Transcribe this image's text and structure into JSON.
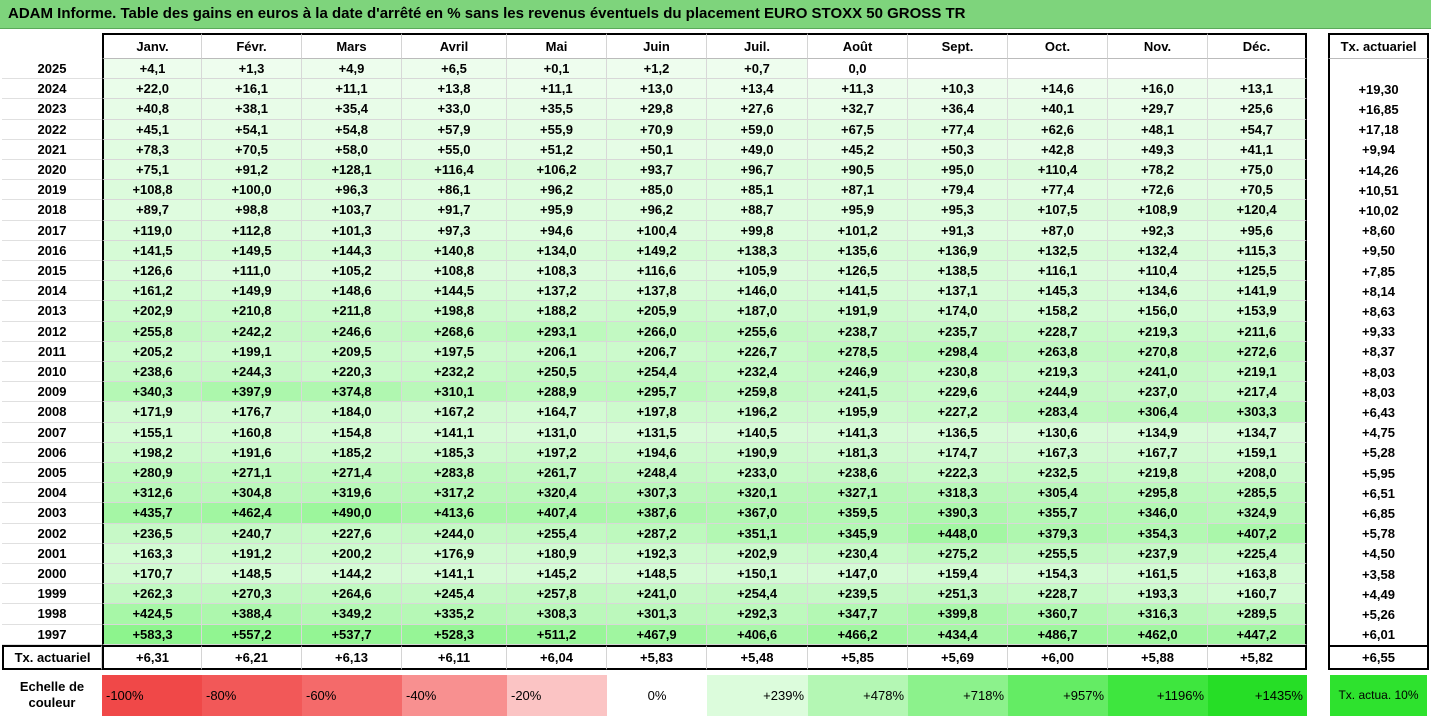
{
  "title": "ADAM Informe. Table des gains en euros à la date d'arrêté en % sans les revenus éventuels du placement EURO STOXX 50 GROSS TR",
  "chart_data": {
    "type": "table",
    "columns": [
      "Janv.",
      "Févr.",
      "Mars",
      "Avril",
      "Mai",
      "Juin",
      "Juil.",
      "Août",
      "Sept.",
      "Oct.",
      "Nov.",
      "Déc."
    ],
    "tx_header": "Tx. actuariel",
    "rows": [
      {
        "year": "2025",
        "values": [
          "+4,1",
          "+1,3",
          "+4,9",
          "+6,5",
          "+0,1",
          "+1,2",
          "+0,7",
          "0,0",
          "",
          "",
          "",
          ""
        ],
        "tx": ""
      },
      {
        "year": "2024",
        "values": [
          "+22,0",
          "+16,1",
          "+11,1",
          "+13,8",
          "+11,1",
          "+13,0",
          "+13,4",
          "+11,3",
          "+10,3",
          "+14,6",
          "+16,0",
          "+13,1"
        ],
        "tx": "+19,30"
      },
      {
        "year": "2023",
        "values": [
          "+40,8",
          "+38,1",
          "+35,4",
          "+33,0",
          "+35,5",
          "+29,8",
          "+27,6",
          "+32,7",
          "+36,4",
          "+40,1",
          "+29,7",
          "+25,6"
        ],
        "tx": "+16,85"
      },
      {
        "year": "2022",
        "values": [
          "+45,1",
          "+54,1",
          "+54,8",
          "+57,9",
          "+55,9",
          "+70,9",
          "+59,0",
          "+67,5",
          "+77,4",
          "+62,6",
          "+48,1",
          "+54,7"
        ],
        "tx": "+17,18"
      },
      {
        "year": "2021",
        "values": [
          "+78,3",
          "+70,5",
          "+58,0",
          "+55,0",
          "+51,2",
          "+50,1",
          "+49,0",
          "+45,2",
          "+50,3",
          "+42,8",
          "+49,3",
          "+41,1"
        ],
        "tx": "+9,94"
      },
      {
        "year": "2020",
        "values": [
          "+75,1",
          "+91,2",
          "+128,1",
          "+116,4",
          "+106,2",
          "+93,7",
          "+96,7",
          "+90,5",
          "+95,0",
          "+110,4",
          "+78,2",
          "+75,0"
        ],
        "tx": "+14,26"
      },
      {
        "year": "2019",
        "values": [
          "+108,8",
          "+100,0",
          "+96,3",
          "+86,1",
          "+96,2",
          "+85,0",
          "+85,1",
          "+87,1",
          "+79,4",
          "+77,4",
          "+72,6",
          "+70,5"
        ],
        "tx": "+10,51"
      },
      {
        "year": "2018",
        "values": [
          "+89,7",
          "+98,8",
          "+103,7",
          "+91,7",
          "+95,9",
          "+96,2",
          "+88,7",
          "+95,9",
          "+95,3",
          "+107,5",
          "+108,9",
          "+120,4"
        ],
        "tx": "+10,02"
      },
      {
        "year": "2017",
        "values": [
          "+119,0",
          "+112,8",
          "+101,3",
          "+97,3",
          "+94,6",
          "+100,4",
          "+99,8",
          "+101,2",
          "+91,3",
          "+87,0",
          "+92,3",
          "+95,6"
        ],
        "tx": "+8,60"
      },
      {
        "year": "2016",
        "values": [
          "+141,5",
          "+149,5",
          "+144,3",
          "+140,8",
          "+134,0",
          "+149,2",
          "+138,3",
          "+135,6",
          "+136,9",
          "+132,5",
          "+132,4",
          "+115,3"
        ],
        "tx": "+9,50"
      },
      {
        "year": "2015",
        "values": [
          "+126,6",
          "+111,0",
          "+105,2",
          "+108,8",
          "+108,3",
          "+116,6",
          "+105,9",
          "+126,5",
          "+138,5",
          "+116,1",
          "+110,4",
          "+125,5"
        ],
        "tx": "+7,85"
      },
      {
        "year": "2014",
        "values": [
          "+161,2",
          "+149,9",
          "+148,6",
          "+144,5",
          "+137,2",
          "+137,8",
          "+146,0",
          "+141,5",
          "+137,1",
          "+145,3",
          "+134,6",
          "+141,9"
        ],
        "tx": "+8,14"
      },
      {
        "year": "2013",
        "values": [
          "+202,9",
          "+210,8",
          "+211,8",
          "+198,8",
          "+188,2",
          "+205,9",
          "+187,0",
          "+191,9",
          "+174,0",
          "+158,2",
          "+156,0",
          "+153,9"
        ],
        "tx": "+8,63"
      },
      {
        "year": "2012",
        "values": [
          "+255,8",
          "+242,2",
          "+246,6",
          "+268,6",
          "+293,1",
          "+266,0",
          "+255,6",
          "+238,7",
          "+235,7",
          "+228,7",
          "+219,3",
          "+211,6"
        ],
        "tx": "+9,33"
      },
      {
        "year": "2011",
        "values": [
          "+205,2",
          "+199,1",
          "+209,5",
          "+197,5",
          "+206,1",
          "+206,7",
          "+226,7",
          "+278,5",
          "+298,4",
          "+263,8",
          "+270,8",
          "+272,6"
        ],
        "tx": "+8,37"
      },
      {
        "year": "2010",
        "values": [
          "+238,6",
          "+244,3",
          "+220,3",
          "+232,2",
          "+250,5",
          "+254,4",
          "+232,4",
          "+246,9",
          "+230,8",
          "+219,3",
          "+241,0",
          "+219,1"
        ],
        "tx": "+8,03"
      },
      {
        "year": "2009",
        "values": [
          "+340,3",
          "+397,9",
          "+374,8",
          "+310,1",
          "+288,9",
          "+295,7",
          "+259,8",
          "+241,5",
          "+229,6",
          "+244,9",
          "+237,0",
          "+217,4"
        ],
        "tx": "+8,03"
      },
      {
        "year": "2008",
        "values": [
          "+171,9",
          "+176,7",
          "+184,0",
          "+167,2",
          "+164,7",
          "+197,8",
          "+196,2",
          "+195,9",
          "+227,2",
          "+283,4",
          "+306,4",
          "+303,3"
        ],
        "tx": "+6,43"
      },
      {
        "year": "2007",
        "values": [
          "+155,1",
          "+160,8",
          "+154,8",
          "+141,1",
          "+131,0",
          "+131,5",
          "+140,5",
          "+141,3",
          "+136,5",
          "+130,6",
          "+134,9",
          "+134,7"
        ],
        "tx": "+4,75"
      },
      {
        "year": "2006",
        "values": [
          "+198,2",
          "+191,6",
          "+185,2",
          "+185,3",
          "+197,2",
          "+194,6",
          "+190,9",
          "+181,3",
          "+174,7",
          "+167,3",
          "+167,7",
          "+159,1"
        ],
        "tx": "+5,28"
      },
      {
        "year": "2005",
        "values": [
          "+280,9",
          "+271,1",
          "+271,4",
          "+283,8",
          "+261,7",
          "+248,4",
          "+233,0",
          "+238,6",
          "+222,3",
          "+232,5",
          "+219,8",
          "+208,0"
        ],
        "tx": "+5,95"
      },
      {
        "year": "2004",
        "values": [
          "+312,6",
          "+304,8",
          "+319,6",
          "+317,2",
          "+320,4",
          "+307,3",
          "+320,1",
          "+327,1",
          "+318,3",
          "+305,4",
          "+295,8",
          "+285,5"
        ],
        "tx": "+6,51"
      },
      {
        "year": "2003",
        "values": [
          "+435,7",
          "+462,4",
          "+490,0",
          "+413,6",
          "+407,4",
          "+387,6",
          "+367,0",
          "+359,5",
          "+390,3",
          "+355,7",
          "+346,0",
          "+324,9"
        ],
        "tx": "+6,85"
      },
      {
        "year": "2002",
        "values": [
          "+236,5",
          "+240,7",
          "+227,6",
          "+244,0",
          "+255,4",
          "+287,2",
          "+351,1",
          "+345,9",
          "+448,0",
          "+379,3",
          "+354,3",
          "+407,2"
        ],
        "tx": "+5,78"
      },
      {
        "year": "2001",
        "values": [
          "+163,3",
          "+191,2",
          "+200,2",
          "+176,9",
          "+180,9",
          "+192,3",
          "+202,9",
          "+230,4",
          "+275,2",
          "+255,5",
          "+237,9",
          "+225,4"
        ],
        "tx": "+4,50"
      },
      {
        "year": "2000",
        "values": [
          "+170,7",
          "+148,5",
          "+144,2",
          "+141,1",
          "+145,2",
          "+148,5",
          "+150,1",
          "+147,0",
          "+159,4",
          "+154,3",
          "+161,5",
          "+163,8"
        ],
        "tx": "+3,58"
      },
      {
        "year": "1999",
        "values": [
          "+262,3",
          "+270,3",
          "+264,6",
          "+245,4",
          "+257,8",
          "+241,0",
          "+254,4",
          "+239,5",
          "+251,3",
          "+228,7",
          "+193,3",
          "+160,7"
        ],
        "tx": "+4,49"
      },
      {
        "year": "1998",
        "values": [
          "+424,5",
          "+388,4",
          "+349,2",
          "+335,2",
          "+308,3",
          "+301,3",
          "+292,3",
          "+347,7",
          "+399,8",
          "+360,7",
          "+316,3",
          "+289,5"
        ],
        "tx": "+5,26"
      },
      {
        "year": "1997",
        "values": [
          "+583,3",
          "+557,2",
          "+537,7",
          "+528,3",
          "+511,2",
          "+467,9",
          "+406,6",
          "+466,2",
          "+434,4",
          "+486,7",
          "+462,0",
          "+447,2"
        ],
        "tx": "+6,01"
      }
    ],
    "footer": {
      "label": "Tx. actuariel",
      "values": [
        "+6,31",
        "+6,21",
        "+6,13",
        "+6,11",
        "+6,04",
        "+5,83",
        "+5,48",
        "+5,85",
        "+5,69",
        "+6,00",
        "+5,88",
        "+5,82"
      ],
      "tx": "+6,55"
    },
    "color_scale": {
      "label": "Echelle de couleur",
      "steps": [
        {
          "text": "-100%",
          "color": "#f04848"
        },
        {
          "text": "-80%",
          "color": "#f25858"
        },
        {
          "text": "-60%",
          "color": "#f46a6a"
        },
        {
          "text": "-40%",
          "color": "#f89090"
        },
        {
          "text": "-20%",
          "color": "#fbc4c4"
        },
        {
          "text": "0%",
          "color": "#ffffff"
        },
        {
          "text": "+239%",
          "color": "#dcfcdc"
        },
        {
          "text": "+478%",
          "color": "#b4f7b4"
        },
        {
          "text": "+718%",
          "color": "#8cf28c"
        },
        {
          "text": "+957%",
          "color": "#64ec64"
        },
        {
          "text": "+1196%",
          "color": "#3ee63e"
        },
        {
          "text": "+1435%",
          "color": "#26de26"
        }
      ],
      "tx_text": "Tx. actua. 10%",
      "tx_color": "#2ee22e"
    }
  }
}
